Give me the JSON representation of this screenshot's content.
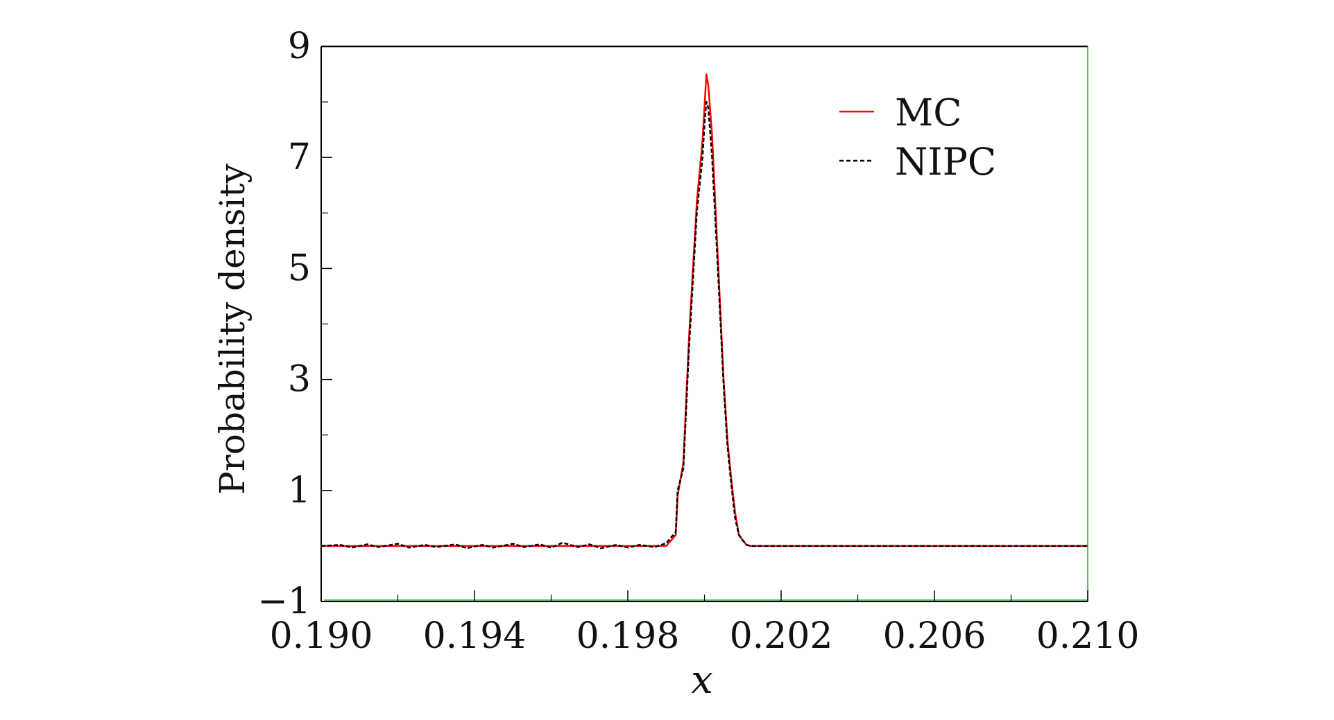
{
  "chart_data": {
    "type": "line",
    "xlabel": "x",
    "ylabel": "Probability density",
    "xlim": [
      0.19,
      0.21
    ],
    "ylim": [
      -1,
      9
    ],
    "xticks": [
      0.19,
      0.194,
      0.198,
      0.202,
      0.206,
      0.21
    ],
    "xtick_labels": [
      "0.190",
      "0.194",
      "0.198",
      "0.202",
      "0.206",
      "0.210"
    ],
    "xminor": [
      0.192,
      0.196,
      0.2,
      0.204,
      0.208
    ],
    "yticks": [
      -1,
      1,
      3,
      5,
      7,
      9
    ],
    "ytick_labels": [
      "−1",
      "1",
      "3",
      "5",
      "7",
      "9"
    ],
    "yminor": [
      0,
      2,
      4,
      6,
      8
    ],
    "grid": false,
    "legend_position": "top-right",
    "series": [
      {
        "name": "MC",
        "color": "#ff0000",
        "style": "solid",
        "x": [
          0.19,
          0.199,
          0.19925,
          0.1993,
          0.19945,
          0.1996,
          0.1998,
          0.19995,
          0.2,
          0.20005,
          0.2001,
          0.2002,
          0.20035,
          0.2005,
          0.2006,
          0.2007,
          0.2008,
          0.2009,
          0.201,
          0.2011,
          0.2012,
          0.2014,
          0.21
        ],
        "y": [
          0.0,
          0.0,
          0.2,
          0.9,
          1.5,
          3.8,
          6.2,
          7.3,
          7.9,
          8.5,
          8.3,
          7.4,
          5.2,
          3.0,
          1.9,
          1.2,
          0.6,
          0.2,
          0.1,
          0.02,
          0.0,
          0.0,
          0.0
        ]
      },
      {
        "name": "NIPC",
        "color": "#000000",
        "style": "dashed",
        "x": [
          0.19,
          0.1905,
          0.1908,
          0.1912,
          0.1915,
          0.192,
          0.1923,
          0.1927,
          0.193,
          0.1935,
          0.1938,
          0.1942,
          0.1945,
          0.195,
          0.1953,
          0.1957,
          0.196,
          0.1963,
          0.1967,
          0.197,
          0.1973,
          0.1977,
          0.198,
          0.1983,
          0.1987,
          0.199,
          0.19925,
          0.1993,
          0.19945,
          0.1996,
          0.1998,
          0.19995,
          0.2,
          0.20005,
          0.2001,
          0.2002,
          0.20035,
          0.2005,
          0.2006,
          0.2007,
          0.2008,
          0.2009,
          0.201,
          0.2011,
          0.2012,
          0.2014,
          0.21
        ],
        "y": [
          0.0,
          0.02,
          -0.03,
          0.03,
          -0.02,
          0.04,
          -0.03,
          0.02,
          -0.02,
          0.03,
          -0.04,
          0.02,
          -0.03,
          0.04,
          -0.02,
          0.03,
          -0.03,
          0.06,
          -0.02,
          0.03,
          -0.04,
          0.02,
          -0.03,
          0.02,
          -0.02,
          0.05,
          0.25,
          1.0,
          1.4,
          3.6,
          6.0,
          7.0,
          7.6,
          8.0,
          7.9,
          7.0,
          5.0,
          2.9,
          1.8,
          1.1,
          0.5,
          0.2,
          0.1,
          0.02,
          0.0,
          0.0,
          0.0
        ]
      }
    ]
  }
}
